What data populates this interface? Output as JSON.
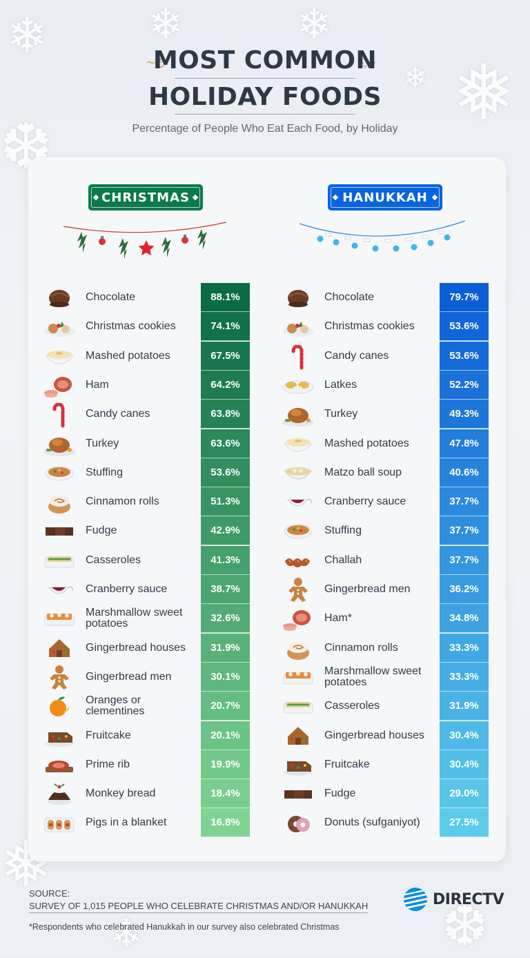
{
  "header": {
    "title_line1": "MOST COMMON",
    "title_line2": "HOLIDAY FOODS",
    "subtitle": "Percentage of People Who Eat Each Food, by Holiday"
  },
  "colors": {
    "christmas_dark": "#0b6b43",
    "christmas_light": "#7fd493",
    "hanukkah_dark": "#0b5fd6",
    "hanukkah_light": "#5ccbea"
  },
  "chart_data": [
    {
      "type": "table",
      "title": "CHRISTMAS",
      "categories": [
        "Chocolate",
        "Christmas cookies",
        "Mashed potatoes",
        "Ham",
        "Candy canes",
        "Turkey",
        "Stuffing",
        "Cinnamon rolls",
        "Fudge",
        "Casseroles",
        "Cranberry sauce",
        "Marshmallow sweet potatoes",
        "Gingerbread houses",
        "Gingerbread men",
        "Oranges or clementines",
        "Fruitcake",
        "Prime rib",
        "Monkey bread",
        "Pigs in a blanket"
      ],
      "values": [
        88.1,
        74.1,
        67.5,
        64.2,
        63.8,
        63.6,
        53.6,
        51.3,
        42.9,
        41.3,
        38.7,
        32.6,
        31.9,
        30.1,
        20.7,
        20.1,
        19.9,
        18.4,
        16.8
      ],
      "labels": [
        "88.1%",
        "74.1%",
        "67.5%",
        "64.2%",
        "63.8%",
        "63.6%",
        "53.6%",
        "51.3%",
        "42.9%",
        "41.3%",
        "38.7%",
        "32.6%",
        "31.9%",
        "30.1%",
        "20.7%",
        "20.1%",
        "19.9%",
        "18.4%",
        "16.8%"
      ],
      "icons": [
        "chocolate",
        "cookies",
        "mashed",
        "ham",
        "candycane",
        "turkey",
        "stuffing",
        "cinnamon",
        "fudge",
        "casserole",
        "cranberry",
        "sweetpotato",
        "gbhouse",
        "gbman",
        "orange",
        "fruitcake",
        "primerib",
        "monkeybread",
        "pigs"
      ]
    },
    {
      "type": "table",
      "title": "HANUKKAH",
      "categories": [
        "Chocolate",
        "Christmas cookies",
        "Candy canes",
        "Latkes",
        "Turkey",
        "Mashed potatoes",
        "Matzo ball soup",
        "Cranberry sauce",
        "Stuffing",
        "Challah",
        "Gingerbread men",
        "Ham*",
        "Cinnamon rolls",
        "Marshmallow sweet potatoes",
        "Casseroles",
        "Gingerbread houses",
        "Fruitcake",
        "Fudge",
        "Donuts (sufganiyot)"
      ],
      "values": [
        79.7,
        53.6,
        53.6,
        52.2,
        49.3,
        47.8,
        40.6,
        37.7,
        37.7,
        37.7,
        36.2,
        34.8,
        33.3,
        33.3,
        31.9,
        30.4,
        30.4,
        29.0,
        27.5
      ],
      "labels": [
        "79.7%",
        "53.6%",
        "53.6%",
        "52.2%",
        "49.3%",
        "47.8%",
        "40.6%",
        "37.7%",
        "37.7%",
        "37.7%",
        "36.2%",
        "34.8%",
        "33.3%",
        "33.3%",
        "31.9%",
        "30.4%",
        "30.4%",
        "29.0%",
        "27.5%"
      ],
      "icons": [
        "chocolate",
        "cookies",
        "candycane",
        "latkes",
        "turkey",
        "mashed",
        "matzo",
        "cranberry",
        "stuffing",
        "challah",
        "gbman",
        "ham",
        "cinnamon",
        "sweetpotato",
        "casserole",
        "gbhouse",
        "fruitcake",
        "fudge",
        "donut"
      ]
    }
  ],
  "footer": {
    "source_label": "SOURCE:",
    "source_text": "SURVEY OF 1,015 PEOPLE WHO CELEBRATE CHRISTMAS AND/OR HANUKKAH",
    "footnote": "*Respondents who celebrated Hanukkah in our survey also celebrated Christmas"
  },
  "brand": {
    "name": "DIRECTV",
    "icon": "att-globe-icon"
  }
}
